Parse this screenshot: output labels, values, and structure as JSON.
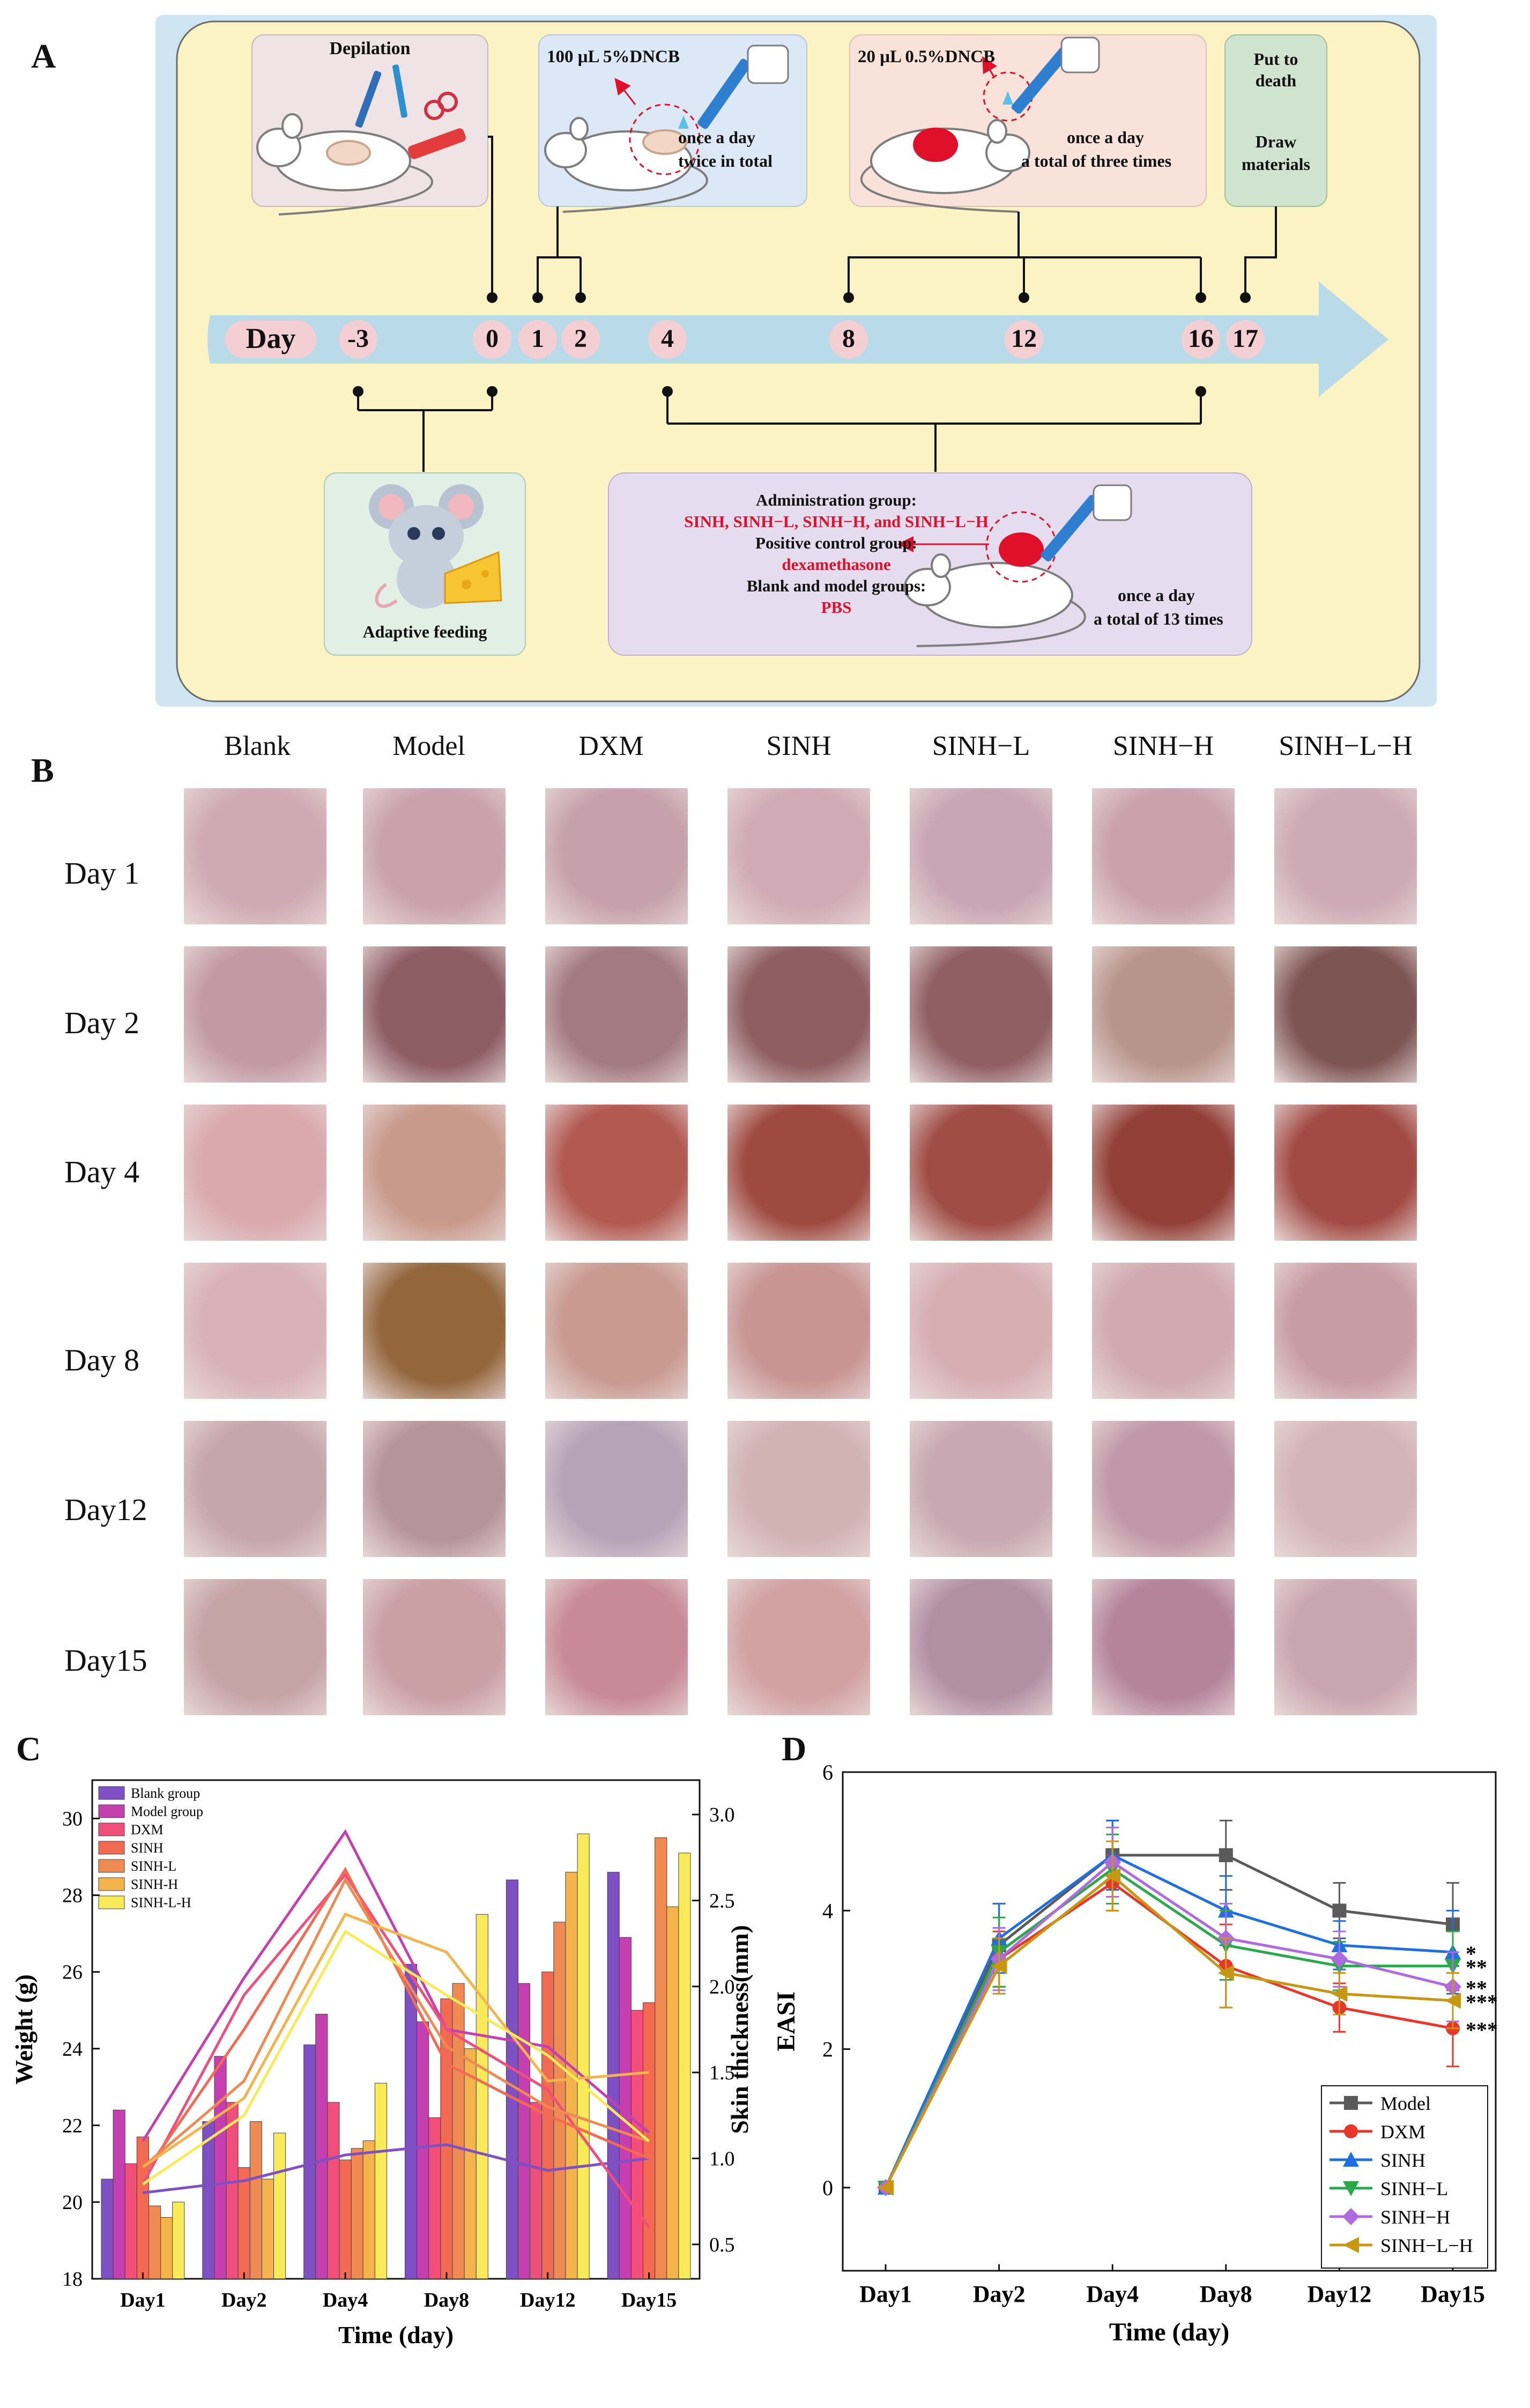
{
  "panel_letters": {
    "a": "A",
    "b": "B",
    "c": "C",
    "d": "D"
  },
  "panel_a": {
    "timeline_label": "Day",
    "timeline_days": [
      "-3",
      "0",
      "1",
      "2",
      "4",
      "8",
      "12",
      "16",
      "17"
    ],
    "depilation": "Depilation",
    "sensitization": {
      "dose": "100 μL 5%DNCB",
      "line1": "once a day",
      "line2": "twice in total"
    },
    "challenge": {
      "dose": "20 μL 0.5%DNCB",
      "line1": "once a day",
      "line2": "a total of three times"
    },
    "end": {
      "line1": "Put to",
      "line2": "death",
      "line3": "Draw",
      "line4": "materials"
    },
    "adaptive": "Adaptive feeding",
    "admin": {
      "l1": "Administration group:",
      "l2": "SINH, SINH−L, SINH−H, and SINH−L−H",
      "l3": "Positive control group:",
      "l4": "dexamethasone",
      "l5": "Blank and model groups:",
      "l6": "PBS",
      "freq1": "once a day",
      "freq2": "a total of 13 times"
    },
    "colors": {
      "panel_bg": "#fbf3c3",
      "timeline": "#b9dbe9",
      "day_circle": "#f3cfd4",
      "red_text": "#e0102a"
    }
  },
  "panel_b": {
    "columns": [
      "Blank",
      "Model",
      "DXM",
      "SINH",
      "SINH−L",
      "SINH−H",
      "SINH−L−H"
    ],
    "rows": [
      "Day 1",
      "Day 2",
      "Day 4",
      "Day 8",
      "Day12",
      "Day15"
    ]
  },
  "chart_data": [
    {
      "type": "bar+line",
      "panel": "C",
      "xlabel": "Time (day)",
      "ylabel": "Weight (g)",
      "y2label": "Skin thickness(mm)",
      "categories": [
        "Day1",
        "Day2",
        "Day4",
        "Day8",
        "Day12",
        "Day15"
      ],
      "ylim": [
        18,
        31
      ],
      "y2lim": [
        0.3,
        3.2
      ],
      "yticks": [
        "18",
        "20",
        "22",
        "24",
        "26",
        "28",
        "30"
      ],
      "y2ticks": [
        "0.5",
        "1.0",
        "1.5",
        "2.0",
        "2.5",
        "3.0"
      ],
      "legend": [
        "Blank group",
        "Model group",
        "DXM",
        "SINH",
        "SINH-L",
        "SINH-H",
        "SINH-L-H"
      ],
      "colors": [
        "#7f4fc4",
        "#c63fb0",
        "#ef4f7a",
        "#f26a52",
        "#ef8a52",
        "#f4b34b",
        "#f8ea58"
      ],
      "bar_series_weight_g": [
        {
          "name": "Blank group",
          "values": [
            20.6,
            22.1,
            24.1,
            26.2,
            28.4,
            28.6
          ]
        },
        {
          "name": "Model group",
          "values": [
            22.4,
            23.8,
            24.9,
            24.7,
            25.7,
            26.9
          ]
        },
        {
          "name": "DXM",
          "values": [
            21.0,
            22.6,
            22.6,
            22.2,
            22.6,
            25.0
          ]
        },
        {
          "name": "SINH",
          "values": [
            21.7,
            20.9,
            21.1,
            25.3,
            26.0,
            25.2
          ]
        },
        {
          "name": "SINH-L",
          "values": [
            19.9,
            22.1,
            21.4,
            25.7,
            27.3,
            29.5
          ]
        },
        {
          "name": "SINH-H",
          "values": [
            19.6,
            20.6,
            21.6,
            24.0,
            28.6,
            27.7
          ]
        },
        {
          "name": "SINH-L-H",
          "values": [
            20.0,
            21.8,
            23.1,
            27.5,
            29.6,
            29.1
          ]
        }
      ],
      "line_series_thickness_mm": [
        {
          "name": "Blank group",
          "values": [
            0.8,
            0.87,
            1.02,
            1.08,
            0.93,
            1.0
          ]
        },
        {
          "name": "Model group",
          "values": [
            1.1,
            2.05,
            2.9,
            1.75,
            1.65,
            1.15
          ]
        },
        {
          "name": "DXM",
          "values": [
            0.85,
            1.95,
            2.65,
            1.75,
            1.4,
            0.6
          ]
        },
        {
          "name": "SINH",
          "values": [
            0.9,
            1.75,
            2.68,
            1.55,
            1.25,
            1.0
          ]
        },
        {
          "name": "SINH-L",
          "values": [
            0.95,
            1.45,
            2.62,
            1.65,
            1.3,
            1.1
          ]
        },
        {
          "name": "SINH-H",
          "values": [
            0.95,
            1.35,
            2.42,
            2.2,
            1.45,
            1.5
          ]
        },
        {
          "name": "SINH-L-H",
          "values": [
            0.85,
            1.25,
            2.32,
            1.95,
            1.6,
            1.1
          ]
        }
      ]
    },
    {
      "type": "line",
      "panel": "D",
      "xlabel": "Time (day)",
      "ylabel": "EASI",
      "categories": [
        "Day1",
        "Day2",
        "Day4",
        "Day8",
        "Day12",
        "Day15"
      ],
      "ylim": [
        -1.2,
        6
      ],
      "yticks": [
        "0",
        "2",
        "4",
        "6"
      ],
      "series": [
        {
          "name": "Model",
          "color": "#5a5a5a",
          "marker": "square",
          "values": [
            0,
            3.5,
            4.8,
            4.8,
            4.0,
            3.8
          ],
          "err": [
            0,
            0.6,
            0.5,
            0.5,
            0.4,
            0.6
          ],
          "sig": ""
        },
        {
          "name": "DXM",
          "color": "#e8362a",
          "marker": "circle",
          "values": [
            0,
            3.3,
            4.4,
            3.2,
            2.6,
            2.3
          ],
          "err": [
            0,
            0.4,
            0.4,
            0.6,
            0.35,
            0.55
          ],
          "sig": "***"
        },
        {
          "name": "SINH",
          "color": "#1f6fe0",
          "marker": "triangle-up",
          "values": [
            0,
            3.6,
            4.8,
            4.0,
            3.5,
            3.4
          ],
          "err": [
            0,
            0.5,
            0.5,
            0.5,
            0.35,
            0.6
          ],
          "sig": "*"
        },
        {
          "name": "SINH−L",
          "color": "#2ba84a",
          "marker": "triangle-down",
          "values": [
            0,
            3.4,
            4.6,
            3.5,
            3.2,
            3.2
          ],
          "err": [
            0,
            0.5,
            0.5,
            0.5,
            0.35,
            0.5
          ],
          "sig": "**"
        },
        {
          "name": "SINH−H",
          "color": "#b06ae0",
          "marker": "diamond",
          "values": [
            0,
            3.3,
            4.7,
            3.6,
            3.3,
            2.9
          ],
          "err": [
            0,
            0.45,
            0.5,
            0.5,
            0.4,
            0.5
          ],
          "sig": "**"
        },
        {
          "name": "SINH−L−H",
          "color": "#c79612",
          "marker": "triangle-left",
          "values": [
            0,
            3.2,
            4.5,
            3.1,
            2.8,
            2.7
          ],
          "err": [
            0,
            0.4,
            0.5,
            0.5,
            0.3,
            0.4
          ],
          "sig": "***"
        }
      ]
    }
  ]
}
